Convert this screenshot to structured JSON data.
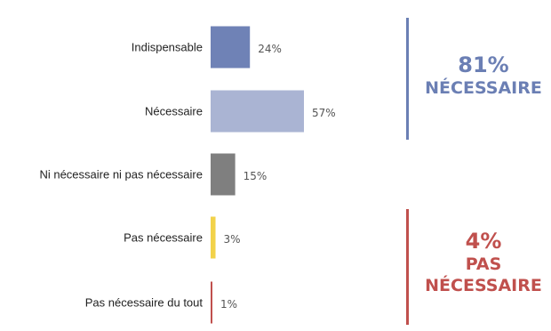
{
  "chart_data": {
    "type": "bar",
    "orientation": "horizontal",
    "categories": [
      "Indispensable",
      "Nécessaire",
      "Ni nécessaire ni pas nécessaire",
      "Pas nécessaire",
      "Pas nécessaire du tout"
    ],
    "values": [
      24,
      57,
      15,
      3,
      1
    ],
    "value_labels": [
      "24%",
      "57%",
      "15%",
      "3%",
      "1%"
    ],
    "bar_colors": [
      "#6f82b6",
      "#aab4d3",
      "#7f7f7f",
      "#f2d24a",
      "#c0504d"
    ],
    "xlim": [
      0,
      100
    ],
    "grid": false,
    "legend": false
  },
  "groups": [
    {
      "pct": "81%",
      "text": "NÉCESSAIRE",
      "color": "#6b7fb4"
    },
    {
      "pct": "4%",
      "text_lines": [
        "PAS",
        "NÉCESSAIRE"
      ],
      "color": "#c0504d"
    }
  ]
}
